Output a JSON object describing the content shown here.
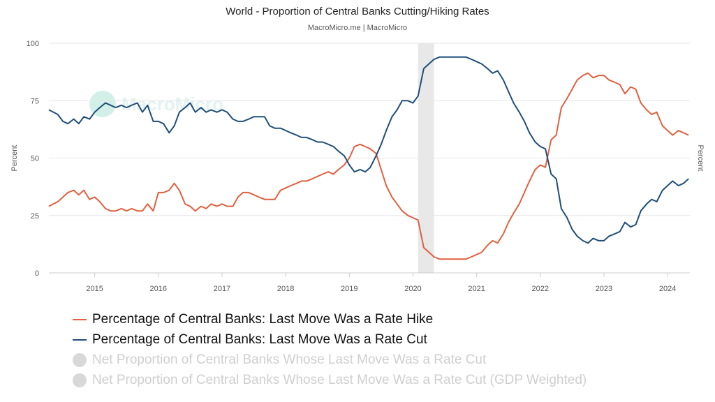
{
  "header": {
    "title": "World - Proportion of Central Banks Cutting/Hiking Rates",
    "subtitle": "MacroMicro.me | MacroMicro"
  },
  "watermark": {
    "text": "MacroMicro"
  },
  "colors": {
    "hike": "#e0603f",
    "cut": "#1f4e79",
    "shade": "#e8e8e8",
    "grid": "#e6e6e6",
    "axis": "#555555"
  },
  "chart_data": {
    "type": "line",
    "title": "World - Proportion of Central Banks Cutting/Hiking Rates",
    "subtitle": "MacroMicro.me | MacroMicro",
    "ylabel_left": "Percent",
    "ylabel_right": "Percent",
    "ylim": [
      0,
      100
    ],
    "yticks": [
      0,
      25,
      50,
      75,
      100
    ],
    "xlim": [
      2014.28,
      2024.35
    ],
    "xticks": [
      2015,
      2016,
      2017,
      2018,
      2019,
      2020,
      2021,
      2022,
      2023,
      2024
    ],
    "grid": true,
    "legend_position": "bottom-left",
    "shaded_region": [
      2020.08,
      2020.33
    ],
    "series": [
      {
        "name": "Percentage of Central Banks: Last Move Was a Rate Hike",
        "color": "#e0603f",
        "points": [
          [
            2014.28,
            29
          ],
          [
            2014.42,
            31
          ],
          [
            2014.58,
            35
          ],
          [
            2014.67,
            36
          ],
          [
            2014.75,
            34
          ],
          [
            2014.83,
            36
          ],
          [
            2014.92,
            32
          ],
          [
            2015.0,
            33
          ],
          [
            2015.08,
            31
          ],
          [
            2015.17,
            28
          ],
          [
            2015.25,
            27
          ],
          [
            2015.33,
            27
          ],
          [
            2015.42,
            28
          ],
          [
            2015.5,
            27
          ],
          [
            2015.58,
            28
          ],
          [
            2015.67,
            27
          ],
          [
            2015.75,
            27
          ],
          [
            2015.83,
            30
          ],
          [
            2015.92,
            27
          ],
          [
            2016.0,
            35
          ],
          [
            2016.08,
            35
          ],
          [
            2016.17,
            36
          ],
          [
            2016.25,
            39
          ],
          [
            2016.33,
            36
          ],
          [
            2016.42,
            30
          ],
          [
            2016.5,
            29
          ],
          [
            2016.58,
            27
          ],
          [
            2016.67,
            29
          ],
          [
            2016.75,
            28
          ],
          [
            2016.83,
            30
          ],
          [
            2016.92,
            29
          ],
          [
            2017.0,
            30
          ],
          [
            2017.08,
            29
          ],
          [
            2017.17,
            29
          ],
          [
            2017.25,
            33
          ],
          [
            2017.33,
            35
          ],
          [
            2017.42,
            35
          ],
          [
            2017.5,
            34
          ],
          [
            2017.58,
            33
          ],
          [
            2017.67,
            32
          ],
          [
            2017.75,
            32
          ],
          [
            2017.83,
            32
          ],
          [
            2017.92,
            36
          ],
          [
            2018.0,
            37
          ],
          [
            2018.08,
            38
          ],
          [
            2018.17,
            39
          ],
          [
            2018.25,
            40
          ],
          [
            2018.33,
            40
          ],
          [
            2018.42,
            41
          ],
          [
            2018.5,
            42
          ],
          [
            2018.58,
            43
          ],
          [
            2018.67,
            44
          ],
          [
            2018.75,
            43
          ],
          [
            2018.83,
            45
          ],
          [
            2018.92,
            47
          ],
          [
            2019.0,
            50
          ],
          [
            2019.08,
            55
          ],
          [
            2019.17,
            56
          ],
          [
            2019.25,
            55
          ],
          [
            2019.33,
            54
          ],
          [
            2019.42,
            52
          ],
          [
            2019.5,
            45
          ],
          [
            2019.58,
            38
          ],
          [
            2019.67,
            33
          ],
          [
            2019.75,
            30
          ],
          [
            2019.83,
            27
          ],
          [
            2019.92,
            25
          ],
          [
            2020.0,
            24
          ],
          [
            2020.08,
            23
          ],
          [
            2020.17,
            11
          ],
          [
            2020.25,
            9
          ],
          [
            2020.33,
            7
          ],
          [
            2020.42,
            6
          ],
          [
            2020.5,
            6
          ],
          [
            2020.67,
            6
          ],
          [
            2020.83,
            6
          ],
          [
            2020.92,
            7
          ],
          [
            2021.0,
            8
          ],
          [
            2021.08,
            9
          ],
          [
            2021.17,
            12
          ],
          [
            2021.25,
            14
          ],
          [
            2021.33,
            13
          ],
          [
            2021.42,
            17
          ],
          [
            2021.5,
            22
          ],
          [
            2021.58,
            26
          ],
          [
            2021.67,
            30
          ],
          [
            2021.75,
            35
          ],
          [
            2021.83,
            40
          ],
          [
            2021.92,
            45
          ],
          [
            2022.0,
            47
          ],
          [
            2022.08,
            46
          ],
          [
            2022.17,
            58
          ],
          [
            2022.25,
            60
          ],
          [
            2022.33,
            72
          ],
          [
            2022.42,
            76
          ],
          [
            2022.5,
            80
          ],
          [
            2022.58,
            84
          ],
          [
            2022.67,
            86
          ],
          [
            2022.75,
            87
          ],
          [
            2022.83,
            85
          ],
          [
            2022.92,
            86
          ],
          [
            2023.0,
            86
          ],
          [
            2023.08,
            84
          ],
          [
            2023.17,
            83
          ],
          [
            2023.25,
            82
          ],
          [
            2023.33,
            78
          ],
          [
            2023.42,
            81
          ],
          [
            2023.5,
            80
          ],
          [
            2023.58,
            74
          ],
          [
            2023.67,
            71
          ],
          [
            2023.75,
            69
          ],
          [
            2023.83,
            70
          ],
          [
            2023.92,
            64
          ],
          [
            2024.0,
            62
          ],
          [
            2024.08,
            60
          ],
          [
            2024.17,
            62
          ],
          [
            2024.25,
            61
          ],
          [
            2024.33,
            60
          ]
        ]
      },
      {
        "name": "Percentage of Central Banks: Last Move Was a Rate Cut",
        "color": "#1f4e79",
        "points": [
          [
            2014.28,
            71
          ],
          [
            2014.42,
            69
          ],
          [
            2014.5,
            66
          ],
          [
            2014.58,
            65
          ],
          [
            2014.67,
            67
          ],
          [
            2014.75,
            65
          ],
          [
            2014.83,
            68
          ],
          [
            2014.92,
            67
          ],
          [
            2015.0,
            70
          ],
          [
            2015.08,
            72
          ],
          [
            2015.17,
            74
          ],
          [
            2015.25,
            73
          ],
          [
            2015.33,
            72
          ],
          [
            2015.42,
            73
          ],
          [
            2015.5,
            72
          ],
          [
            2015.58,
            73
          ],
          [
            2015.67,
            74
          ],
          [
            2015.75,
            70
          ],
          [
            2015.83,
            73
          ],
          [
            2015.92,
            66
          ],
          [
            2016.0,
            66
          ],
          [
            2016.08,
            65
          ],
          [
            2016.17,
            61
          ],
          [
            2016.25,
            64
          ],
          [
            2016.33,
            70
          ],
          [
            2016.42,
            72
          ],
          [
            2016.5,
            74
          ],
          [
            2016.58,
            70
          ],
          [
            2016.67,
            72
          ],
          [
            2016.75,
            70
          ],
          [
            2016.83,
            71
          ],
          [
            2016.92,
            70
          ],
          [
            2017.0,
            71
          ],
          [
            2017.08,
            70
          ],
          [
            2017.17,
            67
          ],
          [
            2017.25,
            66
          ],
          [
            2017.33,
            66
          ],
          [
            2017.42,
            67
          ],
          [
            2017.5,
            68
          ],
          [
            2017.58,
            68
          ],
          [
            2017.67,
            68
          ],
          [
            2017.75,
            64
          ],
          [
            2017.83,
            63
          ],
          [
            2017.92,
            63
          ],
          [
            2018.0,
            62
          ],
          [
            2018.08,
            61
          ],
          [
            2018.17,
            60
          ],
          [
            2018.25,
            59
          ],
          [
            2018.33,
            59
          ],
          [
            2018.42,
            58
          ],
          [
            2018.5,
            57
          ],
          [
            2018.58,
            57
          ],
          [
            2018.67,
            56
          ],
          [
            2018.75,
            55
          ],
          [
            2018.83,
            53
          ],
          [
            2018.92,
            51
          ],
          [
            2019.0,
            47
          ],
          [
            2019.08,
            44
          ],
          [
            2019.17,
            45
          ],
          [
            2019.25,
            44
          ],
          [
            2019.33,
            46
          ],
          [
            2019.42,
            51
          ],
          [
            2019.5,
            56
          ],
          [
            2019.58,
            62
          ],
          [
            2019.67,
            68
          ],
          [
            2019.75,
            71
          ],
          [
            2019.83,
            75
          ],
          [
            2019.92,
            75
          ],
          [
            2020.0,
            74
          ],
          [
            2020.08,
            77
          ],
          [
            2020.17,
            89
          ],
          [
            2020.25,
            91
          ],
          [
            2020.33,
            93
          ],
          [
            2020.42,
            94
          ],
          [
            2020.5,
            94
          ],
          [
            2020.67,
            94
          ],
          [
            2020.83,
            94
          ],
          [
            2020.92,
            93
          ],
          [
            2021.0,
            92
          ],
          [
            2021.08,
            91
          ],
          [
            2021.17,
            89
          ],
          [
            2021.25,
            87
          ],
          [
            2021.33,
            88
          ],
          [
            2021.42,
            84
          ],
          [
            2021.5,
            79
          ],
          [
            2021.58,
            74
          ],
          [
            2021.67,
            70
          ],
          [
            2021.75,
            66
          ],
          [
            2021.83,
            61
          ],
          [
            2021.92,
            57
          ],
          [
            2022.0,
            55
          ],
          [
            2022.08,
            54
          ],
          [
            2022.17,
            43
          ],
          [
            2022.25,
            41
          ],
          [
            2022.33,
            28
          ],
          [
            2022.42,
            24
          ],
          [
            2022.5,
            19
          ],
          [
            2022.58,
            16
          ],
          [
            2022.67,
            14
          ],
          [
            2022.75,
            13
          ],
          [
            2022.83,
            15
          ],
          [
            2022.92,
            14
          ],
          [
            2023.0,
            14
          ],
          [
            2023.08,
            16
          ],
          [
            2023.17,
            17
          ],
          [
            2023.25,
            18
          ],
          [
            2023.33,
            22
          ],
          [
            2023.42,
            20
          ],
          [
            2023.5,
            21
          ],
          [
            2023.58,
            27
          ],
          [
            2023.67,
            30
          ],
          [
            2023.75,
            32
          ],
          [
            2023.83,
            31
          ],
          [
            2023.92,
            36
          ],
          [
            2024.0,
            38
          ],
          [
            2024.08,
            40
          ],
          [
            2024.17,
            38
          ],
          [
            2024.25,
            39
          ],
          [
            2024.33,
            41
          ]
        ]
      }
    ],
    "legend": [
      {
        "label": "Percentage of Central Banks: Last Move Was a Rate Hike",
        "color": "#e0603f",
        "marker": "line",
        "enabled": true
      },
      {
        "label": "Percentage of Central Banks: Last Move Was a Rate Cut",
        "color": "#1f4e79",
        "marker": "line",
        "enabled": true
      },
      {
        "label": "Net Proportion of Central Banks Whose Last Move Was a Rate Cut",
        "color": "#d8d8d8",
        "marker": "circle",
        "enabled": false
      },
      {
        "label": "Net Proportion of Central Banks Whose Last Move Was a Rate Cut (GDP Weighted)",
        "color": "#d8d8d8",
        "marker": "circle",
        "enabled": false
      }
    ]
  }
}
